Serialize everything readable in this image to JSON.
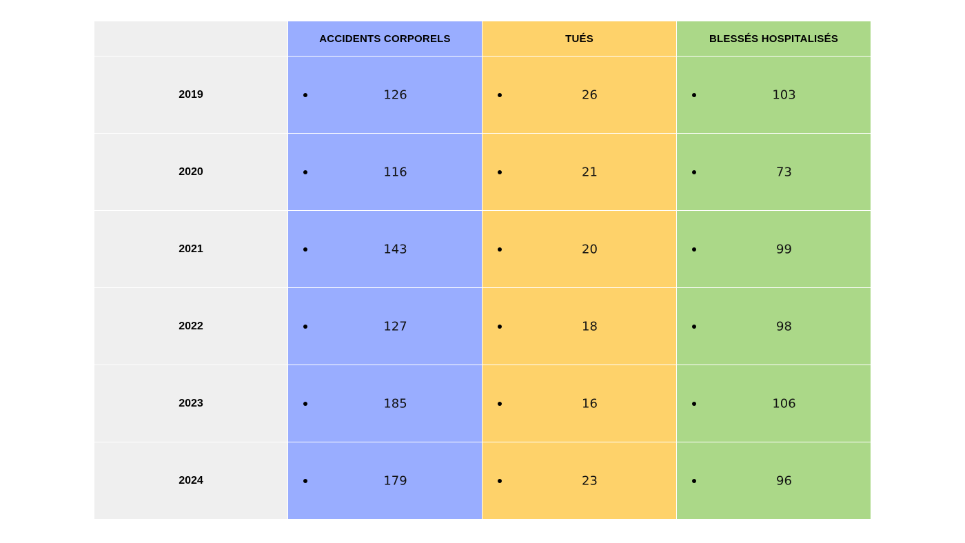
{
  "headers": {
    "year": "",
    "accidents": "ACCIDENTS CORPORELS",
    "tues": "TUÉS",
    "blesses": "BLESSÉS HOSPITALISÉS"
  },
  "colors": {
    "year_bg": "#efefef",
    "accidents_bg": "#99adff",
    "tues_bg": "#fed26a",
    "blesses_bg": "#abd888"
  },
  "chart_data": {
    "type": "table",
    "columns": [
      "",
      "ACCIDENTS CORPORELS",
      "TUÉS",
      "BLESSÉS HOSPITALISÉS"
    ],
    "rows": [
      {
        "year": "2019",
        "accidents": "126",
        "tues": "26",
        "blesses": "103"
      },
      {
        "year": "2020",
        "accidents": "116",
        "tues": "21",
        "blesses": "73"
      },
      {
        "year": "2021",
        "accidents": "143",
        "tues": "20",
        "blesses": "99"
      },
      {
        "year": "2022",
        "accidents": "127",
        "tues": "18",
        "blesses": "98"
      },
      {
        "year": "2023",
        "accidents": "185",
        "tues": "16",
        "blesses": "106"
      },
      {
        "year": "2024",
        "accidents": "179",
        "tues": "23",
        "blesses": "96"
      }
    ]
  }
}
